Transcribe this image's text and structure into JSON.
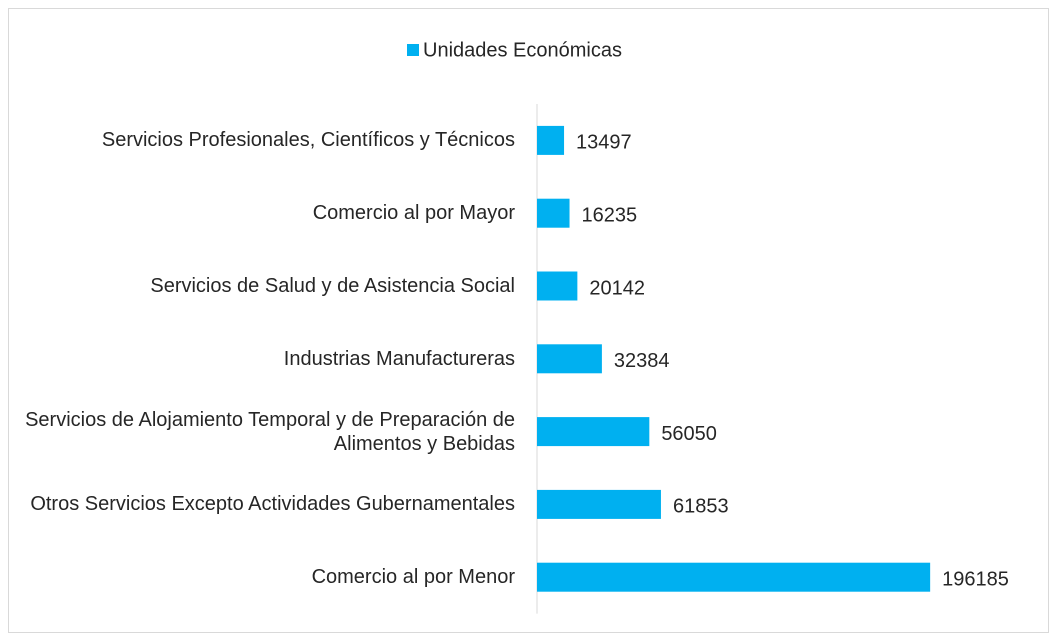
{
  "chart_data": {
    "type": "barh",
    "categories": [
      "Servicios Profesionales, Científicos y Técnicos",
      "Comercio al por Mayor",
      "Servicios de Salud y de Asistencia Social",
      "Industrias Manufactureras",
      "Servicios de Alojamiento Temporal y de Preparación de Alimentos y Bebidas",
      "Otros Servicios Excepto Actividades Gubernamentales",
      "Comercio al por Menor"
    ],
    "series": [
      {
        "name": "Unidades Económicas",
        "color": "#00b0f0",
        "values": [
          13497,
          16235,
          20142,
          32384,
          56050,
          61853,
          196185
        ]
      }
    ],
    "xlim": [
      0,
      250000
    ],
    "legend": "top"
  }
}
